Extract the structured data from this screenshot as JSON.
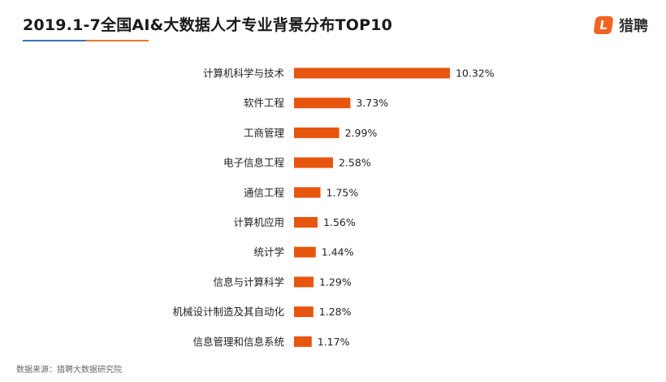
{
  "header": {
    "title": "2019.1-7全国AI&大数据人才专业背景分布TOP10",
    "logo_text": "猎聘",
    "logo_icon": "liepin-logo-icon"
  },
  "source": "数据来源：猎聘大数据研究院",
  "colors": {
    "bar": "#e8550f",
    "underline_blue": "#3d6fb6",
    "underline_orange": "#f07430",
    "logo": "#f26322"
  },
  "chart_data": {
    "type": "bar",
    "orientation": "horizontal",
    "title": "2019.1-7全国AI&大数据人才专业背景分布TOP10",
    "categories": [
      "计算机科学与技术",
      "软件工程",
      "工商管理",
      "电子信息工程",
      "通信工程",
      "计算机应用",
      "统计学",
      "信息与计算科学",
      "机械设计制造及其自动化",
      "信息管理和信息系统"
    ],
    "values": [
      10.32,
      3.73,
      2.99,
      2.58,
      1.75,
      1.56,
      1.44,
      1.29,
      1.28,
      1.17
    ],
    "value_labels": [
      "10.32%",
      "3.73%",
      "2.99%",
      "2.58%",
      "1.75%",
      "1.56%",
      "1.44%",
      "1.29%",
      "1.28%",
      "1.17%"
    ],
    "unit": "%",
    "grid": false,
    "xlabel": "",
    "ylabel": ""
  }
}
